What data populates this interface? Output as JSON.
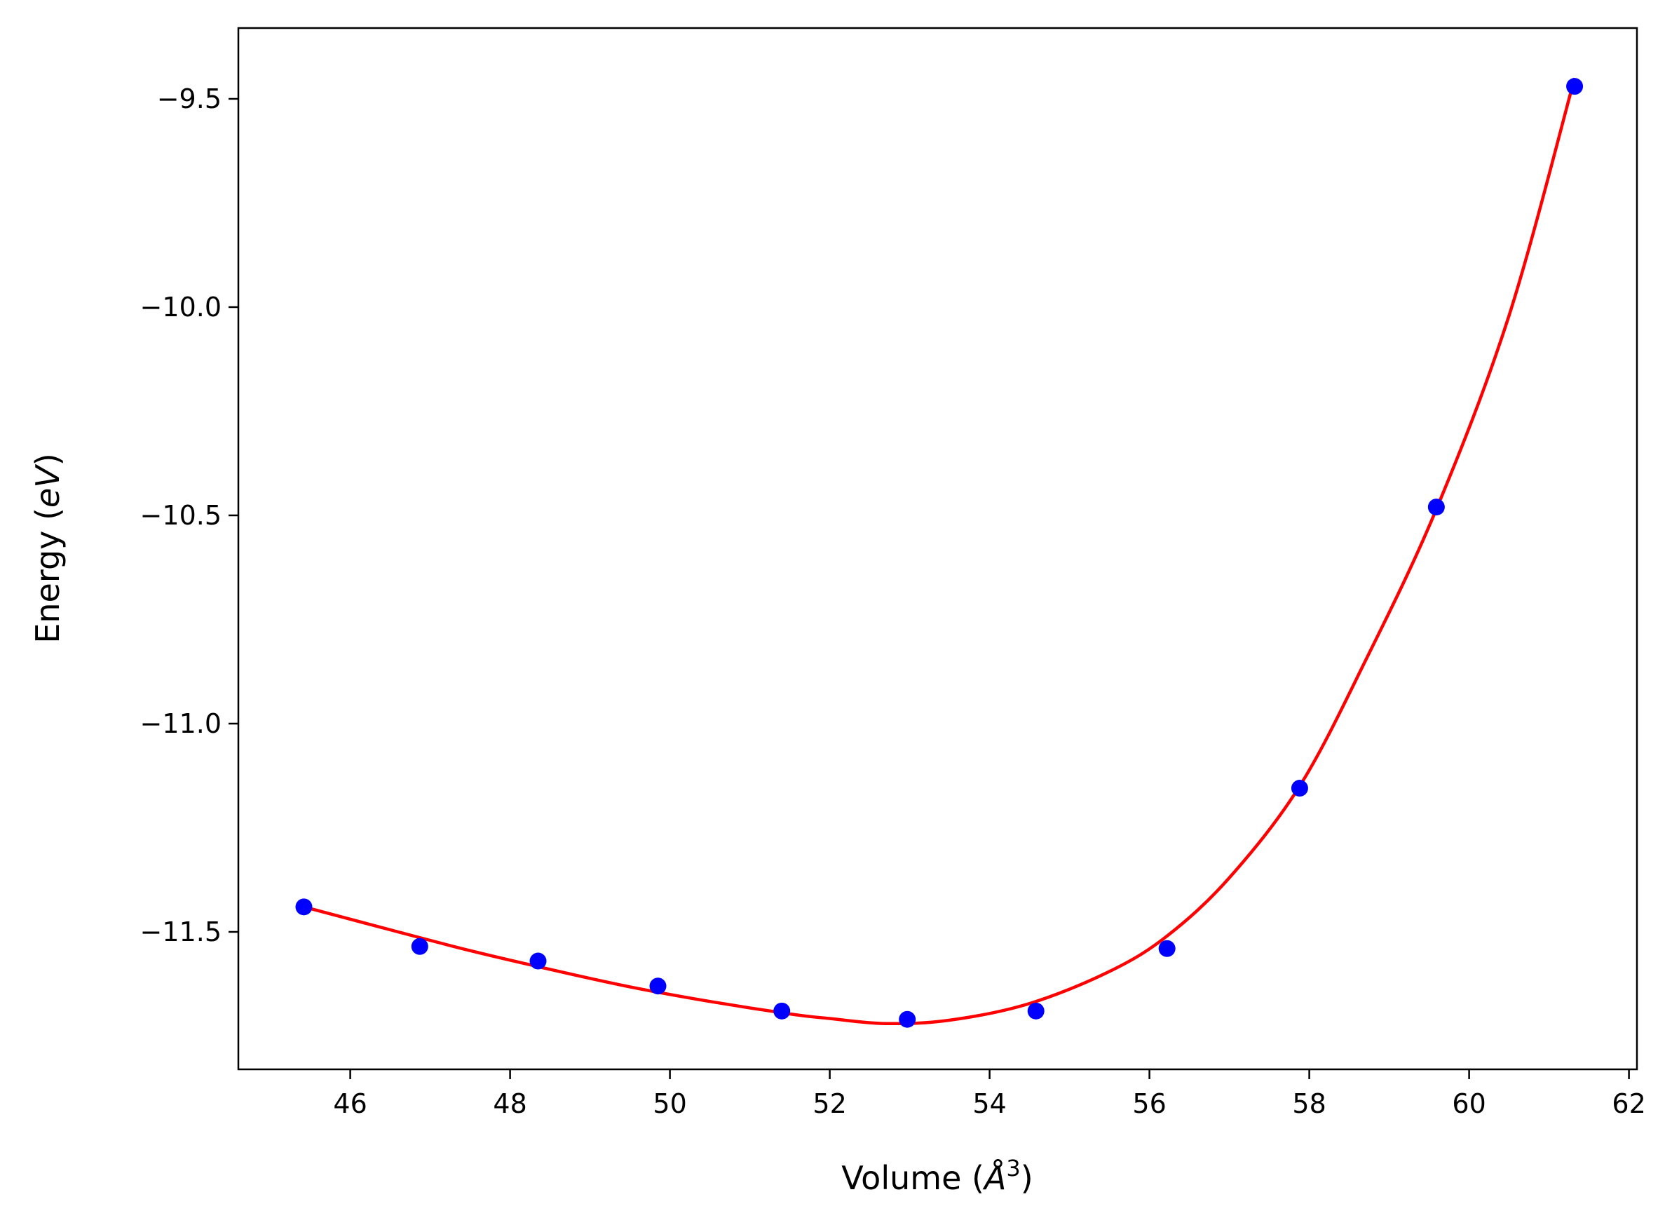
{
  "chart_data": {
    "type": "scatter",
    "title": "",
    "xlabel": "Volume ($\\AA^3$)",
    "xlabel_parts": {
      "prefix": "Volume (",
      "symbol": "Å",
      "superscript": "3",
      "suffix": ")"
    },
    "ylabel": "Energy ($eV$)",
    "ylabel_parts": {
      "prefix": "Energy (",
      "italic": "eV",
      "suffix": ")"
    },
    "xlim": [
      44.6,
      62.1
    ],
    "ylim": [
      -11.83,
      -9.33
    ],
    "x_ticks": [
      46,
      48,
      50,
      52,
      54,
      56,
      58,
      60,
      62
    ],
    "x_tick_labels": [
      "46",
      "48",
      "50",
      "52",
      "54",
      "56",
      "58",
      "60",
      "62"
    ],
    "y_ticks": [
      -9.5,
      -10.0,
      -10.5,
      -11.0,
      -11.5
    ],
    "y_tick_labels": [
      "−9.5",
      "−10.0",
      "−10.5",
      "−11.0",
      "−11.5"
    ],
    "grid": false,
    "series": [
      {
        "kind": "points",
        "color": "#0000ff",
        "x": [
          45.42,
          46.87,
          48.35,
          49.85,
          51.4,
          52.97,
          54.58,
          56.22,
          57.88,
          59.59,
          61.32
        ],
        "y": [
          -11.44,
          -11.535,
          -11.57,
          -11.63,
          -11.69,
          -11.71,
          -11.69,
          -11.54,
          -11.155,
          -10.48,
          -9.47
        ]
      },
      {
        "kind": "fit-curve",
        "color": "#ff0000",
        "x": [
          45.42,
          46.5,
          47.5,
          48.5,
          49.5,
          50.5,
          51.5,
          52.0,
          52.7,
          53.5,
          54.5,
          55.5,
          56.22,
          57.0,
          57.88,
          58.7,
          59.59,
          60.5,
          61.32
        ],
        "y": [
          -11.44,
          -11.495,
          -11.545,
          -11.59,
          -11.632,
          -11.667,
          -11.697,
          -11.708,
          -11.72,
          -11.712,
          -11.672,
          -11.595,
          -11.51,
          -11.37,
          -11.15,
          -10.85,
          -10.485,
          -10.02,
          -9.45
        ]
      }
    ]
  }
}
